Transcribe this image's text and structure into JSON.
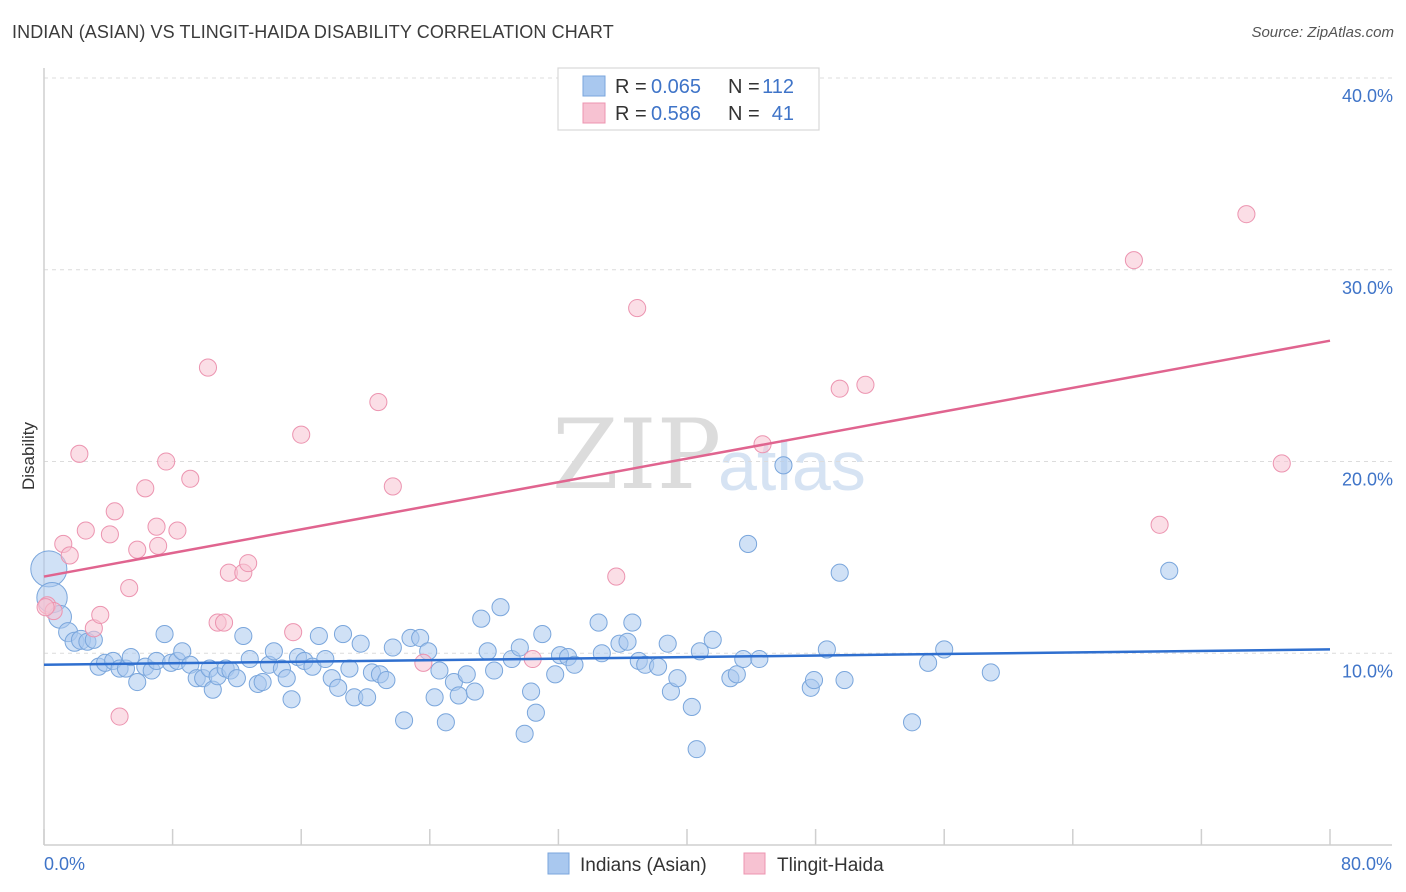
{
  "header": {
    "title": "INDIAN (ASIAN) VS TLINGIT-HAIDA DISABILITY CORRELATION CHART",
    "source": "Source: ZipAtlas.com"
  },
  "watermark": {
    "zip": "ZIP",
    "atlas": "atlas"
  },
  "legend_top": [
    {
      "r_label": "R =",
      "r_value": "0.065",
      "n_label": "N =",
      "n_value": "112"
    },
    {
      "r_label": "R =",
      "r_value": "0.586",
      "n_label": "N =",
      "n_value": "41"
    }
  ],
  "colors": {
    "blue_fill": "#a9c8ef",
    "blue_stroke": "#7aa6dc",
    "blue_line": "#2f6fcf",
    "pink_fill": "#f7c2d2",
    "pink_stroke": "#ec94b0",
    "pink_line": "#e0648f",
    "tick_text": "#3f74c8",
    "grid": "#dcdcdc"
  },
  "chart_data": {
    "type": "scatter",
    "title": "INDIAN (ASIAN) VS TLINGIT-HAIDA DISABILITY CORRELATION CHART",
    "xlabel": "",
    "ylabel": "Disability",
    "xlim": [
      0,
      80
    ],
    "ylim": [
      0,
      40
    ],
    "x_tick_labels": [
      "0.0%",
      "80.0%"
    ],
    "y_tick_labels": [
      "10.0%",
      "20.0%",
      "30.0%",
      "40.0%"
    ],
    "y_ticks": [
      10,
      20,
      30,
      40
    ],
    "legend": [
      "Indians (Asian)",
      "Tlingit-Haida"
    ],
    "series": [
      {
        "name": "Indians (Asian)",
        "color": "#a9c8ef",
        "trend": {
          "x": [
            0,
            80
          ],
          "y": [
            9.4,
            10.2
          ]
        },
        "points": [
          [
            0.3,
            14.4,
            1.9
          ],
          [
            0.5,
            12.9,
            1.6
          ],
          [
            1.0,
            11.9,
            1.2
          ],
          [
            1.5,
            11.1,
            1.0
          ],
          [
            1.9,
            10.6,
            1.0
          ],
          [
            2.3,
            10.7,
            1.0
          ],
          [
            2.7,
            10.6,
            0.9
          ],
          [
            3.1,
            10.7,
            0.9
          ],
          [
            3.4,
            9.3,
            0.9
          ],
          [
            3.8,
            9.5,
            0.9
          ],
          [
            4.3,
            9.6,
            0.9
          ],
          [
            4.7,
            9.2,
            0.9
          ],
          [
            5.1,
            9.2,
            0.9
          ],
          [
            5.4,
            9.8,
            0.9
          ],
          [
            5.8,
            8.5,
            0.9
          ],
          [
            6.3,
            9.3,
            0.9
          ],
          [
            6.7,
            9.1,
            0.9
          ],
          [
            7.0,
            9.6,
            0.9
          ],
          [
            7.5,
            11.0,
            0.9
          ],
          [
            7.9,
            9.5,
            0.9
          ],
          [
            8.3,
            9.6,
            0.9
          ],
          [
            8.6,
            10.1,
            0.9
          ],
          [
            9.1,
            9.4,
            0.9
          ],
          [
            9.5,
            8.7,
            0.9
          ],
          [
            9.9,
            8.7,
            0.9
          ],
          [
            10.3,
            9.2,
            0.9
          ],
          [
            10.5,
            8.1,
            0.9
          ],
          [
            10.8,
            8.8,
            0.9
          ],
          [
            11.3,
            9.2,
            0.9
          ],
          [
            11.6,
            9.1,
            0.9
          ],
          [
            12.0,
            8.7,
            0.9
          ],
          [
            12.4,
            10.9,
            0.9
          ],
          [
            12.8,
            9.7,
            0.9
          ],
          [
            13.3,
            8.4,
            0.9
          ],
          [
            13.6,
            8.5,
            0.9
          ],
          [
            14.0,
            9.4,
            0.9
          ],
          [
            14.3,
            10.1,
            0.9
          ],
          [
            14.8,
            9.2,
            0.9
          ],
          [
            15.1,
            8.7,
            0.9
          ],
          [
            15.4,
            7.6,
            0.9
          ],
          [
            15.8,
            9.8,
            0.9
          ],
          [
            16.2,
            9.6,
            0.9
          ],
          [
            16.7,
            9.3,
            0.9
          ],
          [
            17.1,
            10.9,
            0.9
          ],
          [
            17.5,
            9.7,
            0.9
          ],
          [
            17.9,
            8.7,
            0.9
          ],
          [
            18.3,
            8.2,
            0.9
          ],
          [
            18.6,
            11.0,
            0.9
          ],
          [
            19.0,
            9.2,
            0.9
          ],
          [
            19.3,
            7.7,
            0.9
          ],
          [
            19.7,
            10.5,
            0.9
          ],
          [
            20.1,
            7.7,
            0.9
          ],
          [
            20.4,
            9.0,
            0.9
          ],
          [
            20.9,
            8.9,
            0.9
          ],
          [
            21.3,
            8.6,
            0.9
          ],
          [
            21.7,
            10.3,
            0.9
          ],
          [
            22.4,
            6.5,
            0.9
          ],
          [
            22.8,
            10.8,
            0.9
          ],
          [
            23.4,
            10.8,
            0.9
          ],
          [
            23.9,
            10.1,
            0.9
          ],
          [
            24.3,
            7.7,
            0.9
          ],
          [
            24.6,
            9.1,
            0.9
          ],
          [
            25.0,
            6.4,
            0.9
          ],
          [
            25.5,
            8.5,
            0.9
          ],
          [
            25.8,
            7.8,
            0.9
          ],
          [
            26.3,
            8.9,
            0.9
          ],
          [
            26.8,
            8.0,
            0.9
          ],
          [
            27.2,
            11.8,
            0.9
          ],
          [
            27.6,
            10.1,
            0.9
          ],
          [
            28.0,
            9.1,
            0.9
          ],
          [
            28.4,
            12.4,
            0.9
          ],
          [
            29.1,
            9.7,
            0.9
          ],
          [
            29.6,
            10.3,
            0.9
          ],
          [
            29.9,
            5.8,
            0.9
          ],
          [
            30.3,
            8.0,
            0.9
          ],
          [
            30.6,
            6.9,
            0.9
          ],
          [
            31.0,
            11.0,
            0.9
          ],
          [
            31.8,
            8.9,
            0.9
          ],
          [
            32.1,
            9.9,
            0.9
          ],
          [
            32.6,
            9.8,
            0.9
          ],
          [
            33.0,
            9.4,
            0.9
          ],
          [
            34.5,
            11.6,
            0.9
          ],
          [
            34.7,
            10.0,
            0.9
          ],
          [
            35.8,
            10.5,
            0.9
          ],
          [
            36.3,
            10.6,
            0.9
          ],
          [
            36.6,
            11.6,
            0.9
          ],
          [
            37.0,
            9.6,
            0.9
          ],
          [
            37.4,
            9.4,
            0.9
          ],
          [
            38.2,
            9.3,
            0.9
          ],
          [
            38.8,
            10.5,
            0.9
          ],
          [
            39.0,
            8.0,
            0.9
          ],
          [
            39.4,
            8.7,
            0.9
          ],
          [
            40.3,
            7.2,
            0.9
          ],
          [
            40.6,
            5.0,
            0.9
          ],
          [
            40.8,
            10.1,
            0.9
          ],
          [
            41.6,
            10.7,
            0.9
          ],
          [
            42.7,
            8.7,
            0.9
          ],
          [
            43.1,
            8.9,
            0.9
          ],
          [
            43.5,
            9.7,
            0.9
          ],
          [
            43.8,
            15.7,
            0.9
          ],
          [
            44.5,
            9.7,
            0.9
          ],
          [
            46.0,
            19.8,
            0.9
          ],
          [
            47.7,
            8.2,
            0.9
          ],
          [
            47.9,
            8.6,
            0.9
          ],
          [
            48.7,
            10.2,
            0.9
          ],
          [
            49.5,
            14.2,
            0.9
          ],
          [
            49.8,
            8.6,
            0.9
          ],
          [
            54.0,
            6.4,
            0.9
          ],
          [
            56.0,
            10.2,
            0.9
          ],
          [
            58.9,
            9.0,
            0.9
          ],
          [
            70.0,
            14.3,
            0.9
          ],
          [
            55.0,
            9.5,
            0.9
          ]
        ]
      },
      {
        "name": "Tlingit-Haida",
        "color": "#f7c2d2",
        "trend": {
          "x": [
            0,
            80
          ],
          "y": [
            14.0,
            26.3
          ]
        },
        "points": [
          [
            0.2,
            12.5,
            0.9
          ],
          [
            0.6,
            12.2,
            0.9
          ],
          [
            1.2,
            15.7,
            0.9
          ],
          [
            1.6,
            15.1,
            0.9
          ],
          [
            2.2,
            20.4,
            0.9
          ],
          [
            2.6,
            16.4,
            0.9
          ],
          [
            3.1,
            11.3,
            0.9
          ],
          [
            3.5,
            12.0,
            0.9
          ],
          [
            4.1,
            16.2,
            0.9
          ],
          [
            4.4,
            17.4,
            0.9
          ],
          [
            4.7,
            6.7,
            0.9
          ],
          [
            5.3,
            13.4,
            0.9
          ],
          [
            5.8,
            15.4,
            0.9
          ],
          [
            6.3,
            18.6,
            0.9
          ],
          [
            7.0,
            16.6,
            0.9
          ],
          [
            7.1,
            15.6,
            0.9
          ],
          [
            7.6,
            20.0,
            0.9
          ],
          [
            8.3,
            16.4,
            0.9
          ],
          [
            9.1,
            19.1,
            0.9
          ],
          [
            10.2,
            24.9,
            0.9
          ],
          [
            10.8,
            11.6,
            0.9
          ],
          [
            11.2,
            11.6,
            0.9
          ],
          [
            11.5,
            14.2,
            0.9
          ],
          [
            12.4,
            14.2,
            0.9
          ],
          [
            12.7,
            14.7,
            0.9
          ],
          [
            15.5,
            11.1,
            0.9
          ],
          [
            16.0,
            21.4,
            0.9
          ],
          [
            20.8,
            23.1,
            0.9
          ],
          [
            21.7,
            18.7,
            0.9
          ],
          [
            23.6,
            9.5,
            0.9
          ],
          [
            30.4,
            9.7,
            0.9
          ],
          [
            35.6,
            14.0,
            0.9
          ],
          [
            36.9,
            28.0,
            0.9
          ],
          [
            44.7,
            20.9,
            0.9
          ],
          [
            49.5,
            23.8,
            0.9
          ],
          [
            51.1,
            24.0,
            0.9
          ],
          [
            67.8,
            30.5,
            0.9
          ],
          [
            69.4,
            16.7,
            0.9
          ],
          [
            74.8,
            32.9,
            0.9
          ],
          [
            77.0,
            19.9,
            0.9
          ],
          [
            0.1,
            12.4,
            0.9
          ]
        ]
      }
    ]
  },
  "bottom_legend": {
    "blue_label": "Indians (Asian)",
    "pink_label": "Tlingit-Haida"
  }
}
